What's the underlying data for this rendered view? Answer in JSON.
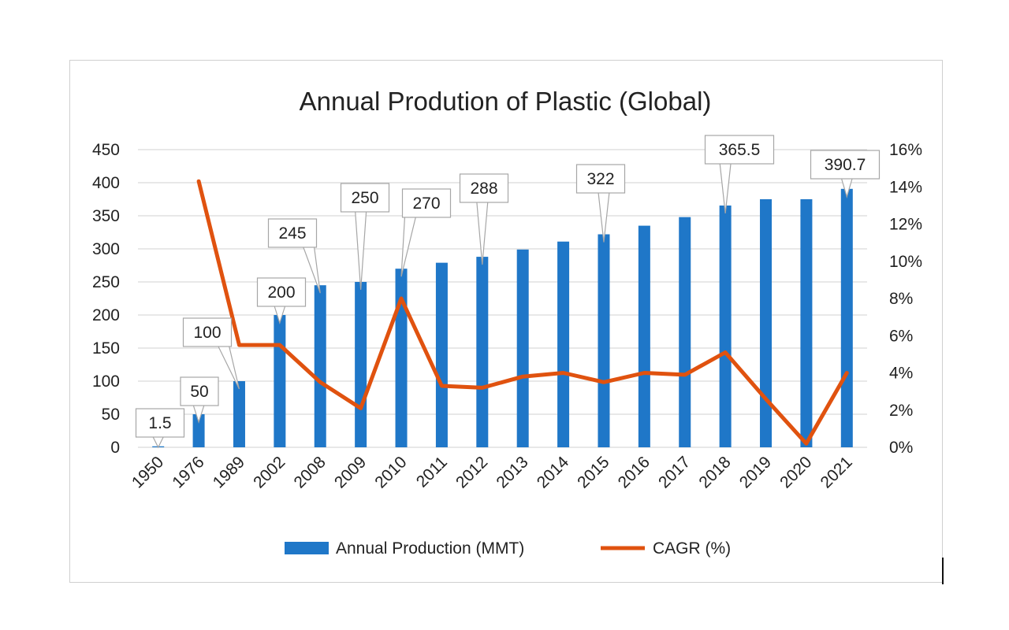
{
  "chart_data": {
    "type": "bar+line",
    "title": "Annual Prodution of Plastic (Global)",
    "categories": [
      "1950",
      "1976",
      "1989",
      "2002",
      "2008",
      "2009",
      "2010",
      "2011",
      "2012",
      "2013",
      "2014",
      "2015",
      "2016",
      "2017",
      "2018",
      "2019",
      "2020",
      "2021"
    ],
    "series": [
      {
        "name": "Annual Production (MMT)",
        "type": "bar",
        "axis": "left",
        "color": "#1f77c8",
        "values": [
          1.5,
          50,
          100,
          200,
          245,
          250,
          270,
          279,
          288,
          299,
          311,
          322,
          335,
          348,
          365.5,
          375,
          375,
          390.7
        ]
      },
      {
        "name": "CAGR (%)",
        "type": "line",
        "axis": "right",
        "color": "#e0520f",
        "values": [
          null,
          14.3,
          5.5,
          5.5,
          3.5,
          2.1,
          8.0,
          3.3,
          3.2,
          3.8,
          4.0,
          3.5,
          4.0,
          3.9,
          5.1,
          2.6,
          0.2,
          4.0
        ]
      }
    ],
    "y_left": {
      "min": 0,
      "max": 450,
      "ticks": [
        "0",
        "50",
        "100",
        "150",
        "200",
        "250",
        "300",
        "350",
        "400",
        "450"
      ]
    },
    "y_right": {
      "min": 0,
      "max": 16,
      "ticks": [
        "0%",
        "2%",
        "4%",
        "6%",
        "8%",
        "10%",
        "12%",
        "14%",
        "16%"
      ]
    },
    "grid": true,
    "legend_position": "bottom",
    "data_labels": [
      {
        "category": "1950",
        "text": "1.5"
      },
      {
        "category": "1976",
        "text": "50"
      },
      {
        "category": "1989",
        "text": "100"
      },
      {
        "category": "2002",
        "text": "200"
      },
      {
        "category": "2008",
        "text": "245"
      },
      {
        "category": "2009",
        "text": "250"
      },
      {
        "category": "2010",
        "text": "270"
      },
      {
        "category": "2012",
        "text": "288"
      },
      {
        "category": "2015",
        "text": "322"
      },
      {
        "category": "2018",
        "text": "365.5"
      },
      {
        "category": "2021",
        "text": "390.7"
      }
    ]
  }
}
